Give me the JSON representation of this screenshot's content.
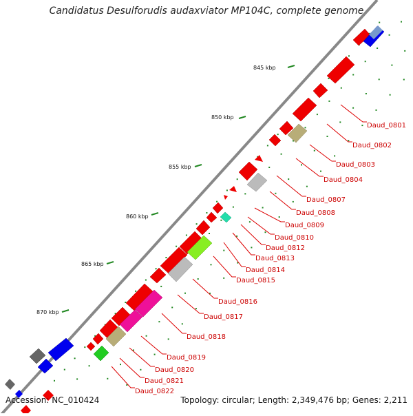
{
  "title": "Candidatus Desulforudis audaxviator MP104C, complete genome",
  "footer": {
    "accession": "Accession: NC_010424",
    "topology": "Topology: circular; Length: 2,349,476 bp; Genes: 2,211"
  },
  "kbp_labels": [
    "845 kbp",
    "850 kbp",
    "855 kbp",
    "860 kbp",
    "865 kbp",
    "870 kbp"
  ],
  "gene_labels": [
    "Daud_0801",
    "Daud_0802",
    "Daud_0803",
    "Daud_0804",
    "Daud_0807",
    "Daud_0808",
    "Daud_0809",
    "Daud_0810",
    "Daud_0812",
    "Daud_0813",
    "Daud_0814",
    "Daud_0815",
    "Daud_0816",
    "Daud_0817",
    "Daud_0818",
    "Daud_0819",
    "Daud_0820",
    "Daud_0821",
    "Daud_0822"
  ],
  "colors": {
    "backbone": "#777777",
    "label": "#cc0000",
    "tick": "#228822",
    "gene_red": "#ee0000",
    "gene_blue": "#0000ee",
    "gene_khaki": "#b8ad78",
    "gene_grey": "#bbbbbb",
    "gene_lime": "#88ee22",
    "gene_pink": "#ee1199",
    "gene_green": "#22cc22",
    "gene_teal": "#22ddaa",
    "gene_dark": "#666666"
  }
}
